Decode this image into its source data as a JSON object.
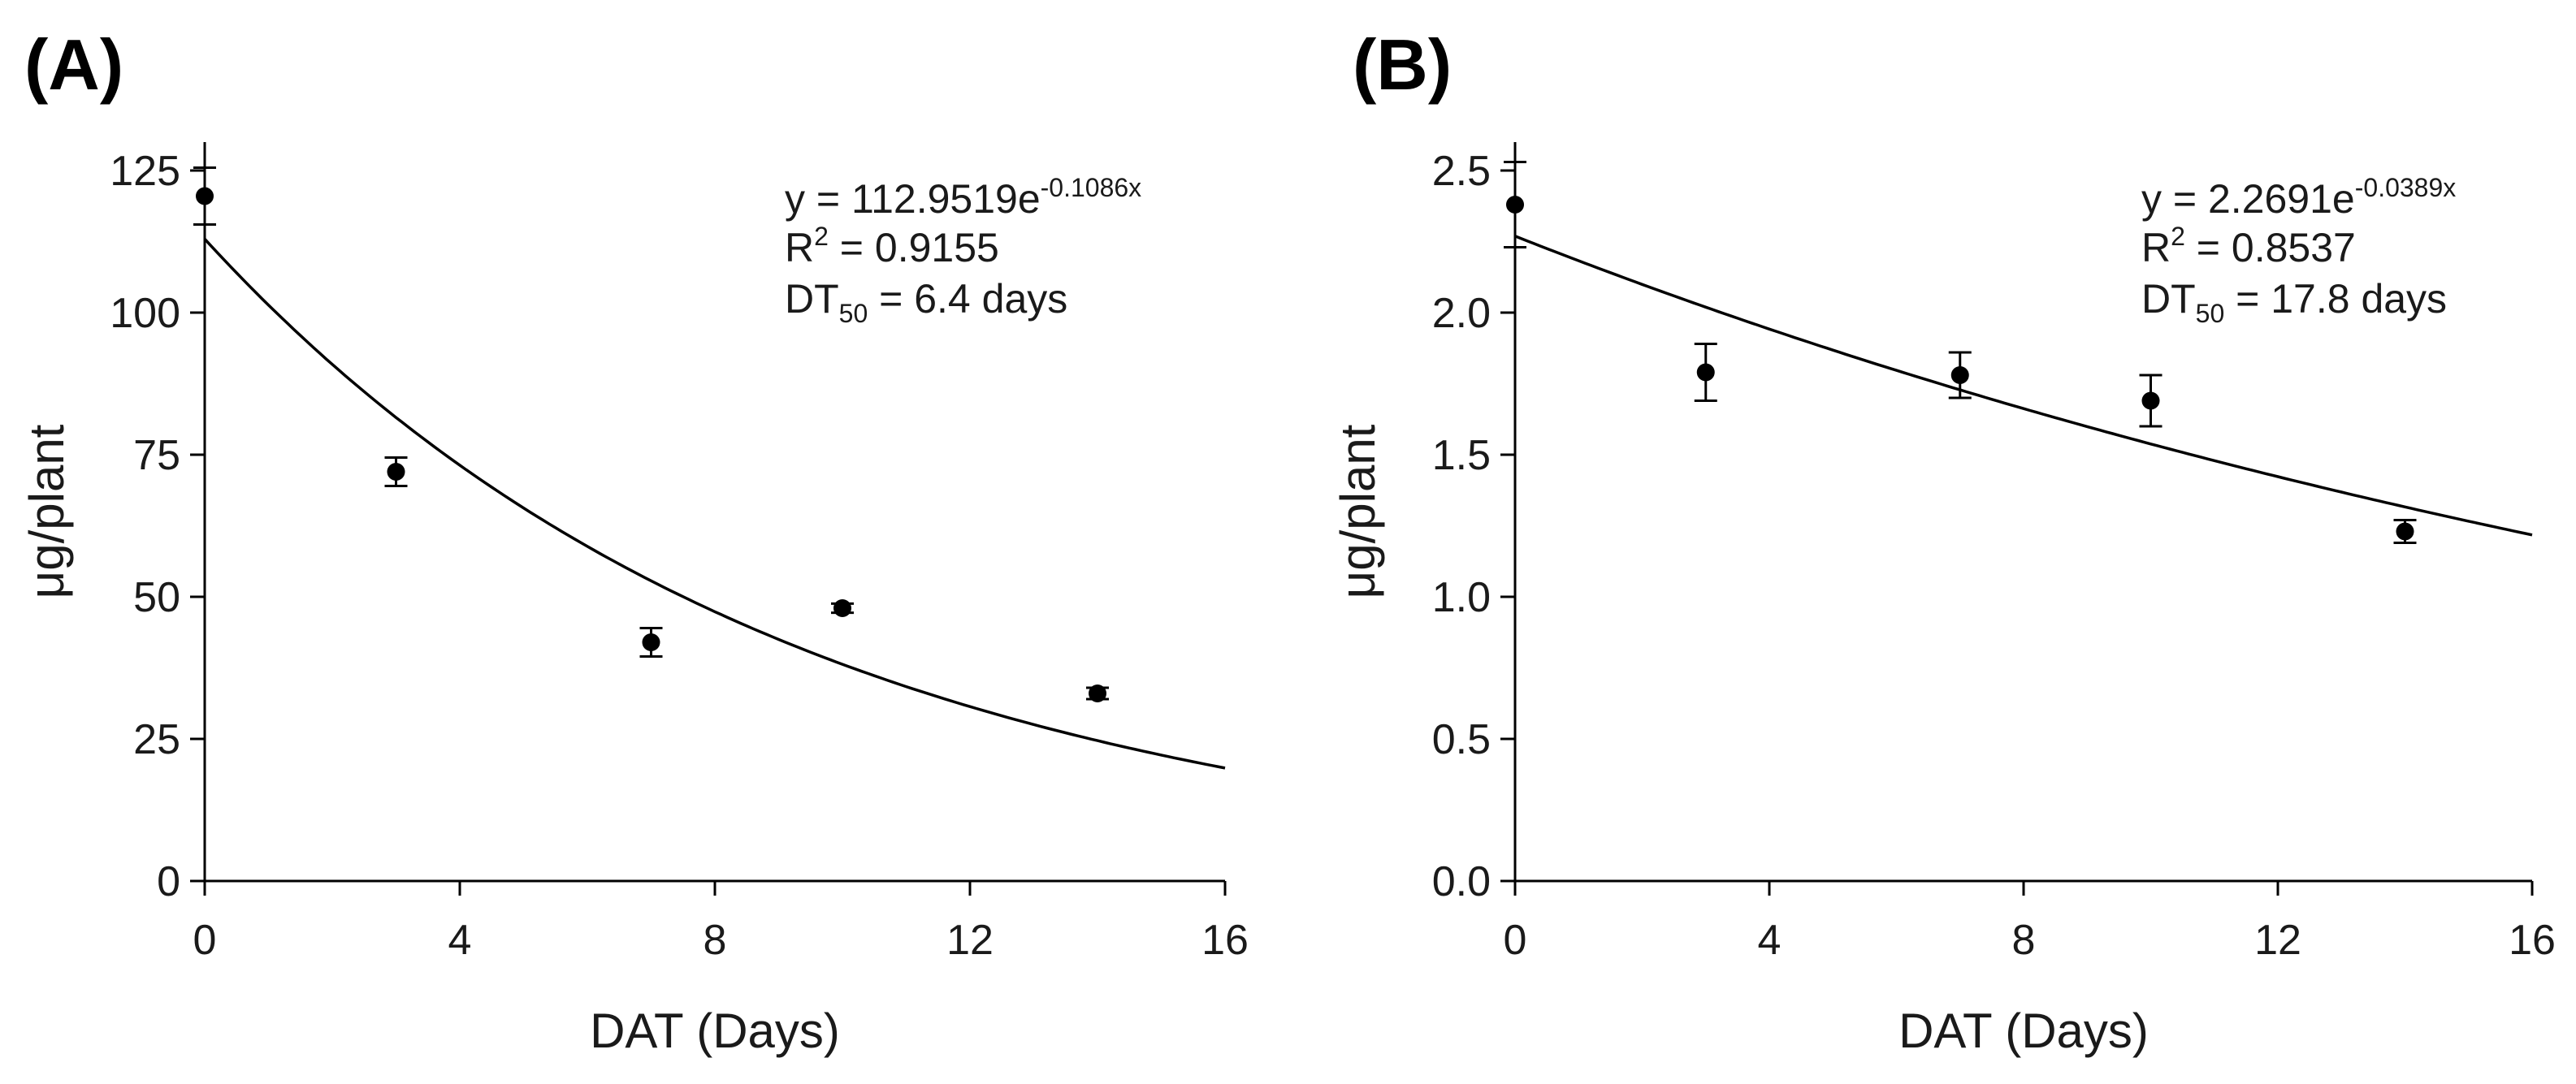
{
  "chart_data": [
    {
      "type": "scatter",
      "panel_label": "(A)",
      "xlabel": "DAT (Days)",
      "ylabel": "μg/plant",
      "xlim": [
        0,
        16
      ],
      "ylim": [
        0,
        130
      ],
      "xticks": [
        0,
        4,
        8,
        12,
        16
      ],
      "yticks": [
        0,
        25,
        50,
        75,
        100,
        125
      ],
      "ytick_labels": [
        "0",
        "25",
        "50",
        "75",
        "100",
        "125"
      ],
      "grid": false,
      "x": [
        0,
        3,
        7,
        10,
        14
      ],
      "y": [
        120.5,
        72,
        42,
        48,
        33
      ],
      "yerr": [
        5,
        2.5,
        2.5,
        0.8,
        1
      ],
      "fit": {
        "a": 112.9519,
        "k": -0.1086
      },
      "equation": {
        "prefix": "y = 112.9519e",
        "exponent": "-0.1086x"
      },
      "r2": {
        "prefix": "R",
        "sup": "2",
        "value": " = 0.9155"
      },
      "dt50": {
        "prefix": "DT",
        "sub": "50",
        "value": " = 6.4 days"
      }
    },
    {
      "type": "scatter",
      "panel_label": "(B)",
      "xlabel": "DAT (Days)",
      "ylabel": "μg/plant",
      "xlim": [
        0,
        16
      ],
      "ylim": [
        0,
        2.6
      ],
      "xticks": [
        0,
        4,
        8,
        12,
        16
      ],
      "yticks": [
        0,
        0.5,
        1.0,
        1.5,
        2.0,
        2.5
      ],
      "ytick_labels": [
        "0.0",
        "0.5",
        "1.0",
        "1.5",
        "2.0",
        "2.5"
      ],
      "grid": false,
      "x": [
        0,
        3,
        7,
        10,
        14
      ],
      "y": [
        2.38,
        1.79,
        1.78,
        1.69,
        1.23
      ],
      "yerr": [
        0.15,
        0.1,
        0.08,
        0.09,
        0.04
      ],
      "fit": {
        "a": 2.2691,
        "k": -0.0389
      },
      "equation": {
        "prefix": "y = 2.2691e",
        "exponent": "-0.0389x"
      },
      "r2": {
        "prefix": "R",
        "sup": "2",
        "value": " = 0.8537"
      },
      "dt50": {
        "prefix": "DT",
        "sub": "50",
        "value": " = 17.8 days"
      }
    }
  ]
}
